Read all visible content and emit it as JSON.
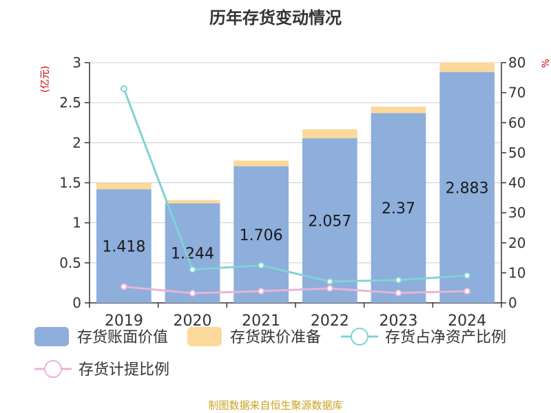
{
  "chart_data": {
    "type": "bar",
    "title": "历年存货变动情况",
    "categories": [
      "2019",
      "2020",
      "2021",
      "2022",
      "2023",
      "2024"
    ],
    "y_left_label": "(亿元)",
    "y_right_label": "%",
    "ylim_left": [
      0,
      3
    ],
    "ylim_right": [
      0,
      80
    ],
    "left_ticks": [
      "0",
      "0.5",
      "1",
      "1.5",
      "2",
      "2.5",
      "3"
    ],
    "right_ticks": [
      "0",
      "10",
      "20",
      "30",
      "40",
      "50",
      "60",
      "70",
      "80"
    ],
    "series": [
      {
        "name": "存货账面价值",
        "kind": "bar",
        "axis": "left",
        "color": "#8eaedb",
        "values": [
          1.418,
          1.244,
          1.706,
          2.057,
          2.37,
          2.883
        ],
        "labels": [
          "1.418",
          "1.244",
          "1.706",
          "2.057",
          "2.37",
          "2.883"
        ]
      },
      {
        "name": "存货跌价准备",
        "kind": "bar",
        "stacked": true,
        "axis": "left",
        "color": "#fcd89a",
        "values": [
          0.08,
          0.04,
          0.07,
          0.11,
          0.08,
          0.12
        ]
      },
      {
        "name": "存货占净资产比例",
        "kind": "line",
        "axis": "right",
        "color": "#7fd3d6",
        "values": [
          71.3,
          11.1,
          12.5,
          7.1,
          7.6,
          9.1
        ]
      },
      {
        "name": "存货计提比例",
        "kind": "line",
        "axis": "right",
        "color": "#e8b4d8",
        "values": [
          5.4,
          3.2,
          3.9,
          4.8,
          3.3,
          3.9
        ]
      }
    ],
    "source": "制图数据来自恒生聚源数据库"
  }
}
